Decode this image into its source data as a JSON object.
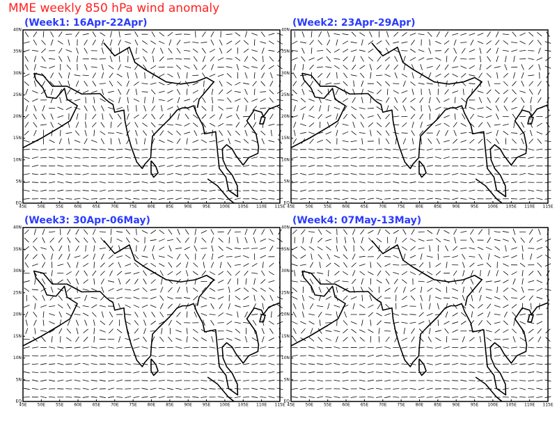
{
  "title": "MME weekly 850 hPa wind anomaly",
  "panels": [
    {
      "title": "(Week1: 16Apr-22Apr)"
    },
    {
      "title": "(Week2: 23Apr-29Apr)"
    },
    {
      "title": "(Week3: 30Apr-06May)"
    },
    {
      "title": "(Week4: 07May-13May)"
    }
  ],
  "xlim": [
    45,
    115
  ],
  "ylim": [
    0,
    40
  ],
  "xticks": [
    {
      "value": 45,
      "label": "45E"
    },
    {
      "value": 50,
      "label": "50E"
    },
    {
      "value": 55,
      "label": "55E"
    },
    {
      "value": 60,
      "label": "60E"
    },
    {
      "value": 65,
      "label": "65E"
    },
    {
      "value": 70,
      "label": "70E"
    },
    {
      "value": 75,
      "label": "75E"
    },
    {
      "value": 80,
      "label": "80E"
    },
    {
      "value": 85,
      "label": "85E"
    },
    {
      "value": 90,
      "label": "90E"
    },
    {
      "value": 95,
      "label": "95E"
    },
    {
      "value": 100,
      "label": "100E"
    },
    {
      "value": 105,
      "label": "105E"
    },
    {
      "value": 110,
      "label": "110E"
    },
    {
      "value": 115,
      "label": "115E"
    }
  ],
  "yticks": [
    {
      "value": 0,
      "label": "EQ"
    },
    {
      "value": 5,
      "label": "5N"
    },
    {
      "value": 10,
      "label": "10N"
    },
    {
      "value": 15,
      "label": "15N"
    },
    {
      "value": 20,
      "label": "20N"
    },
    {
      "value": 25,
      "label": "25N"
    },
    {
      "value": 30,
      "label": "30N"
    },
    {
      "value": 35,
      "label": "35N"
    },
    {
      "value": 40,
      "label": "40N"
    }
  ]
}
